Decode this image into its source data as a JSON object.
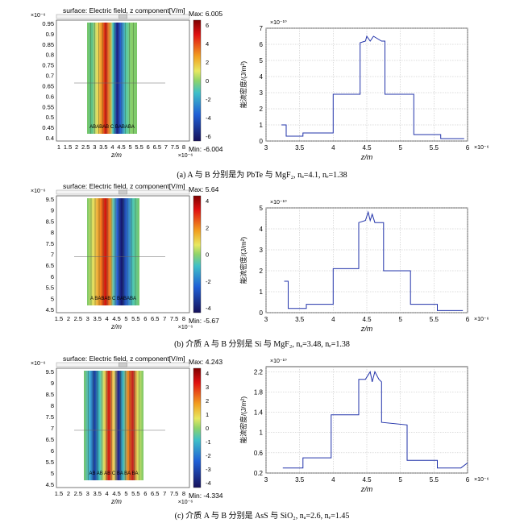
{
  "figure": {
    "field_title": "surface: Electric field, z component[V/m]",
    "energy_ylabel": "能流密度/(J/m²)",
    "z_label": "z/m"
  },
  "panels": [
    {
      "id": "a",
      "caption": "(a)   A 与 B 分别是为 PbTe 与 MgF₂, nₐ=4.1, nₑ=1.38",
      "field": {
        "y_exp": "×10⁻⁶",
        "x_exp": "×10⁻⁶",
        "y_ticks": [
          "0.95",
          "0.9",
          "0.85",
          "0.8",
          "0.75",
          "0.7",
          "0.65",
          "0.6",
          "0.55",
          "0.5",
          "0.45",
          "0.4"
        ],
        "x_ticks": [
          "1",
          "1.5",
          "2",
          "2.5",
          "3",
          "3.5",
          "4",
          "4.5",
          "5",
          "5.5",
          "6",
          "6.5",
          "7",
          "7.5",
          "8"
        ],
        "layer_label": "ABABAB C BABABA",
        "colorbar": {
          "max_label": "Max: 6.005",
          "min_label": "Min: -6.004",
          "ticks": [
            "6",
            "4",
            "2",
            "0",
            "-2",
            "-4",
            "-6"
          ]
        }
      },
      "energy": {
        "y_exp": "×10⁻¹⁰",
        "x_exp": "×10⁻⁶"
      }
    },
    {
      "id": "b",
      "caption": "(b)   介质 A 与 B 分别是 Si 与 MgF₂, nₐ=3.48, nₑ=1.38",
      "field": {
        "y_exp": "×10⁻⁶",
        "x_exp": "×10⁻⁶",
        "y_ticks": [
          "9.5",
          "9",
          "8.5",
          "8",
          "7.5",
          "7",
          "6.5",
          "6",
          "5.5",
          "5",
          "4.5"
        ],
        "x_ticks": [
          "1.5",
          "2",
          "2.5",
          "3",
          "3.5",
          "4",
          "4.5",
          "5",
          "5.5",
          "6",
          "6.5",
          "7",
          "7.5",
          "8"
        ],
        "layer_label": "A BABAB C BABABA",
        "colorbar": {
          "max_label": "Max: 5.64",
          "min_label": "Min: -5.67",
          "ticks": [
            "4",
            "2",
            "0",
            "-2",
            "-4"
          ]
        }
      },
      "energy": {
        "y_exp": "×10⁻¹⁰",
        "x_exp": "×10⁻⁶"
      }
    },
    {
      "id": "c",
      "caption": "(c)   介质 A 与 B 分别是 AsS 与 SiO₂, nₐ=2.6, nₑ=1.45",
      "field": {
        "y_exp": "×10⁻⁶",
        "x_exp": "×10⁻⁶",
        "y_ticks": [
          "9.5",
          "9",
          "8.5",
          "8",
          "7.5",
          "7",
          "6.5",
          "6",
          "5.5",
          "5",
          "4.5"
        ],
        "x_ticks": [
          "1.5",
          "2",
          "2.5",
          "3",
          "3.5",
          "4",
          "4.5",
          "5",
          "5.5",
          "6",
          "6.5",
          "7",
          "7.5",
          "8"
        ],
        "layer_label": "AB AB AB  C  BA BA BA",
        "colorbar": {
          "max_label": "Max: 4.243",
          "min_label": "Min: -4.334",
          "ticks": [
            "4",
            "3",
            "2",
            "1",
            "0",
            "-1",
            "-2",
            "-3",
            "-4"
          ]
        }
      },
      "energy": {
        "y_exp": "×10⁻¹⁰",
        "x_exp": "×10⁻⁶"
      }
    }
  ],
  "chart_data": [
    {
      "type": "line",
      "title": "",
      "xlabel": "z/m",
      "ylabel": "能流密度/(J/m²)",
      "xlim": [
        3,
        6
      ],
      "ylim": [
        0,
        7
      ],
      "x_ticks": [
        "3",
        "3.5",
        "4",
        "4.5",
        "5",
        "5.5",
        "6"
      ],
      "y_ticks": [
        "0",
        "1",
        "2",
        "3",
        "4",
        "5",
        "6",
        "7"
      ],
      "grid": true,
      "series": [
        {
          "x": [
            3.23,
            3.3,
            3.3,
            3.55,
            3.55,
            4.0,
            4.0,
            4.4,
            4.4,
            4.48,
            4.5,
            4.55,
            4.6,
            4.72,
            4.77,
            4.77,
            5.2,
            5.2,
            5.6,
            5.6,
            5.95
          ],
          "y": [
            1.0,
            1.0,
            0.3,
            0.3,
            0.5,
            0.5,
            2.9,
            2.9,
            6.1,
            6.2,
            6.5,
            6.2,
            6.5,
            6.2,
            6.2,
            2.9,
            2.9,
            0.4,
            0.4,
            0.15,
            0.15
          ]
        }
      ]
    },
    {
      "type": "line",
      "title": "",
      "xlabel": "z/m",
      "ylabel": "能流密度/(J/m²)",
      "xlim": [
        3,
        6
      ],
      "ylim": [
        0,
        5
      ],
      "x_ticks": [
        "3",
        "3.5",
        "4",
        "4.5",
        "5",
        "5.5",
        "6"
      ],
      "y_ticks": [
        "0",
        "1",
        "2",
        "3",
        "4",
        "5"
      ],
      "grid": true,
      "series": [
        {
          "x": [
            3.27,
            3.33,
            3.33,
            3.6,
            3.6,
            4.0,
            4.0,
            4.38,
            4.38,
            4.48,
            4.52,
            4.55,
            4.58,
            4.62,
            4.75,
            4.75,
            5.15,
            5.15,
            5.55,
            5.55,
            5.93
          ],
          "y": [
            1.5,
            1.5,
            0.2,
            0.2,
            0.4,
            0.4,
            2.1,
            2.1,
            4.3,
            4.4,
            4.8,
            4.4,
            4.7,
            4.3,
            4.3,
            2.0,
            2.0,
            0.4,
            0.4,
            0.1,
            0.1
          ]
        }
      ]
    },
    {
      "type": "line",
      "title": "",
      "xlabel": "z/m",
      "ylabel": "能流密度/(J/m²)",
      "xlim": [
        3,
        6
      ],
      "ylim": [
        0.2,
        2.3
      ],
      "x_ticks": [
        "3",
        "3.5",
        "4",
        "4.5",
        "5",
        "5.5",
        "6"
      ],
      "y_ticks": [
        "0.2",
        "0.6",
        "1",
        "1.4",
        "1.8",
        "2.2"
      ],
      "grid": true,
      "series": [
        {
          "x": [
            3.25,
            3.55,
            3.55,
            3.97,
            3.97,
            4.38,
            4.38,
            4.48,
            4.55,
            4.58,
            4.62,
            4.68,
            4.72,
            4.72,
            5.1,
            5.1,
            5.55,
            5.55,
            5.9,
            6.0
          ],
          "y": [
            0.3,
            0.3,
            0.5,
            0.5,
            1.35,
            1.35,
            2.05,
            2.05,
            2.2,
            2.0,
            2.2,
            2.05,
            2.0,
            1.2,
            1.15,
            0.45,
            0.45,
            0.3,
            0.3,
            0.4
          ]
        }
      ]
    }
  ]
}
